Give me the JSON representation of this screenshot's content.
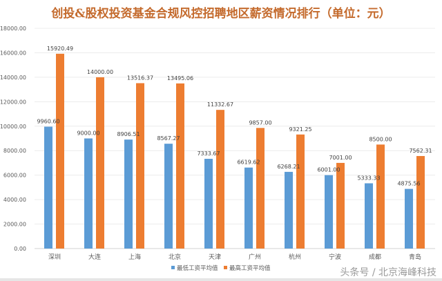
{
  "chart_data": {
    "type": "bar",
    "title": "创投&股权投资基金合规风控招聘地区薪资情况排行（单位：元）",
    "categories": [
      "深圳",
      "大连",
      "上海",
      "北京",
      "天津",
      "广州",
      "杭州",
      "宁波",
      "成都",
      "青岛"
    ],
    "series": [
      {
        "name": "最低工资平均值",
        "color": "#5b9bd5",
        "values": [
          9960.6,
          9000.0,
          8906.51,
          8567.27,
          7333.67,
          6619.62,
          6268.21,
          6001.0,
          5333.33,
          4875.56
        ]
      },
      {
        "name": "最高工资平均值",
        "color": "#ed7d31",
        "values": [
          15920.49,
          14000.0,
          13516.37,
          13495.06,
          11332.67,
          9857.0,
          9321.25,
          7001.0,
          8500.0,
          7562.31
        ]
      }
    ],
    "ylim": [
      0,
      18000
    ],
    "yticks": [
      "0.00",
      "2000.00",
      "4000.00",
      "6000.00",
      "8000.00",
      "10000.00",
      "12000.00",
      "14000.00",
      "16000.00",
      "18000.00"
    ],
    "grid": true,
    "legend": "bottom",
    "xlabel": "",
    "ylabel": ""
  },
  "watermark": "头条号 / 北京海峰科技"
}
